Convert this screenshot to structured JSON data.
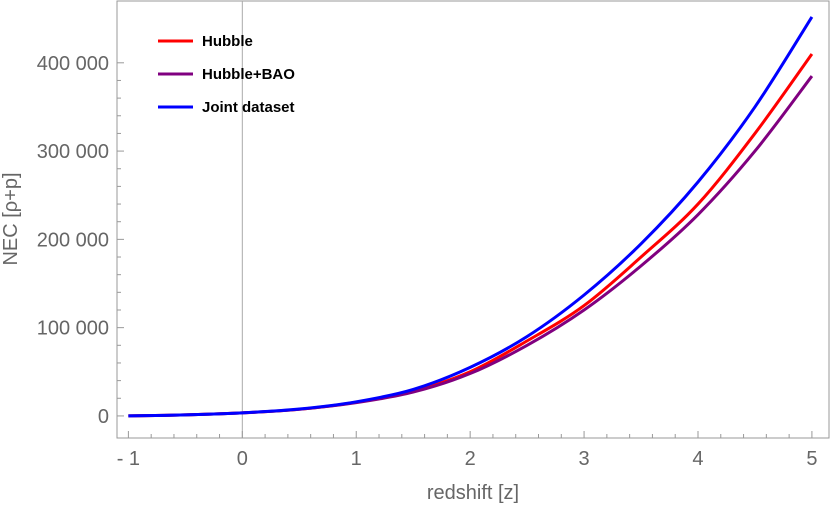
{
  "chart_data": {
    "type": "line",
    "title": "",
    "xlabel": "redshift [z]",
    "ylabel": "NEC [ρ+p]",
    "xlim": [
      -1.1,
      5.15
    ],
    "ylim": [
      -25000,
      470000
    ],
    "x_ticks": [
      -1,
      0,
      1,
      2,
      3,
      4,
      5
    ],
    "x_tick_labels": [
      "- 1",
      "0",
      "1",
      "2",
      "3",
      "4",
      "5"
    ],
    "y_ticks": [
      0,
      100000,
      200000,
      300000,
      400000
    ],
    "y_tick_labels": [
      "0",
      "100 000",
      "200 000",
      "300 000",
      "400 000"
    ],
    "grid": false,
    "legend_position": "top-left",
    "x": [
      -1,
      -0.5,
      0,
      0.5,
      1,
      1.5,
      2,
      2.5,
      3,
      3.5,
      4,
      4.5,
      5
    ],
    "series": [
      {
        "name": "Hubble",
        "color": "#ff0000",
        "values": [
          0,
          1200,
          3500,
          7500,
          15500,
          28000,
          50000,
          85000,
          125000,
          180000,
          240000,
          320000,
          410000
        ]
      },
      {
        "name": "Hubble+BAO",
        "color": "#800080",
        "values": [
          0,
          1200,
          3500,
          7500,
          15000,
          27000,
          48000,
          80000,
          120000,
          170000,
          228000,
          300000,
          385000
        ]
      },
      {
        "name": "Joint dataset",
        "color": "#0000ff",
        "values": [
          0,
          1200,
          3500,
          7800,
          16000,
          30000,
          55000,
          90000,
          137000,
          195000,
          265000,
          350000,
          452000
        ]
      }
    ]
  }
}
